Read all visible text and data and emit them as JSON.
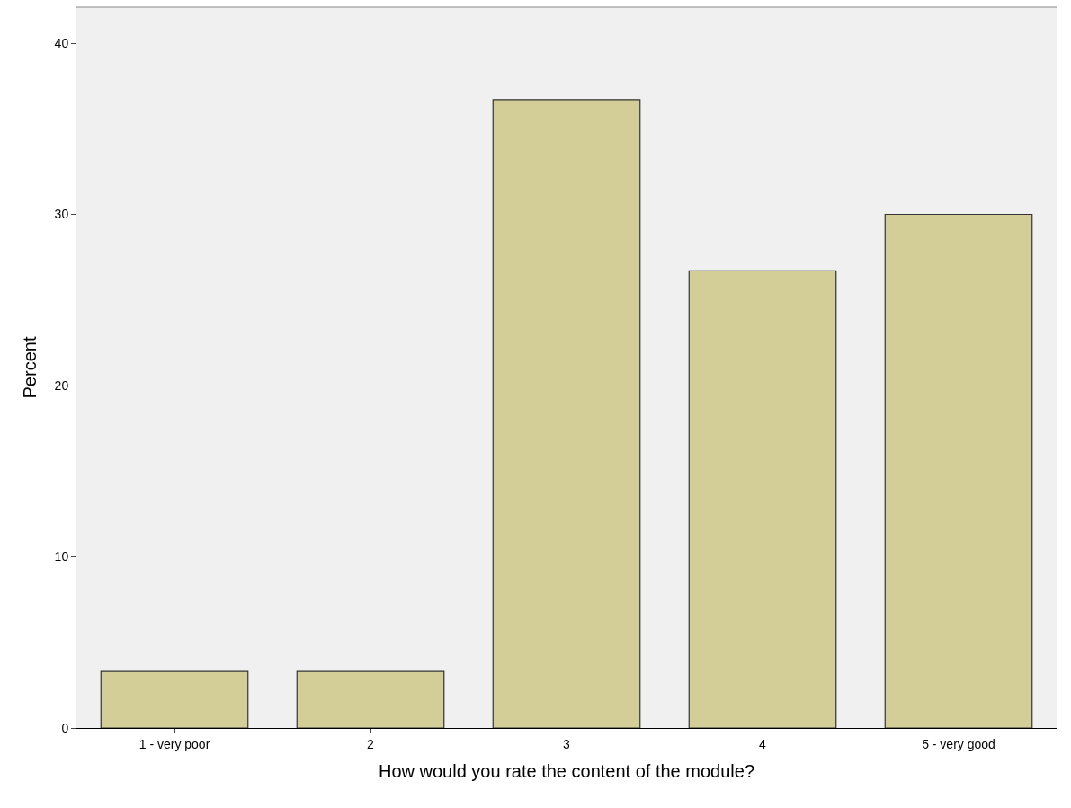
{
  "chart_data": {
    "type": "bar",
    "xlabel": "How would you rate the content of the module?",
    "ylabel": "Percent",
    "categories": [
      "1 - very poor",
      "2",
      "3",
      "4",
      "5 - very good"
    ],
    "values": [
      3.3,
      3.3,
      36.7,
      26.7,
      30.0
    ],
    "color": "#d3ce97",
    "ylim": [
      0,
      42.1
    ],
    "yticks": [
      0,
      10,
      20,
      30,
      40
    ],
    "grid": false,
    "legend": false
  }
}
